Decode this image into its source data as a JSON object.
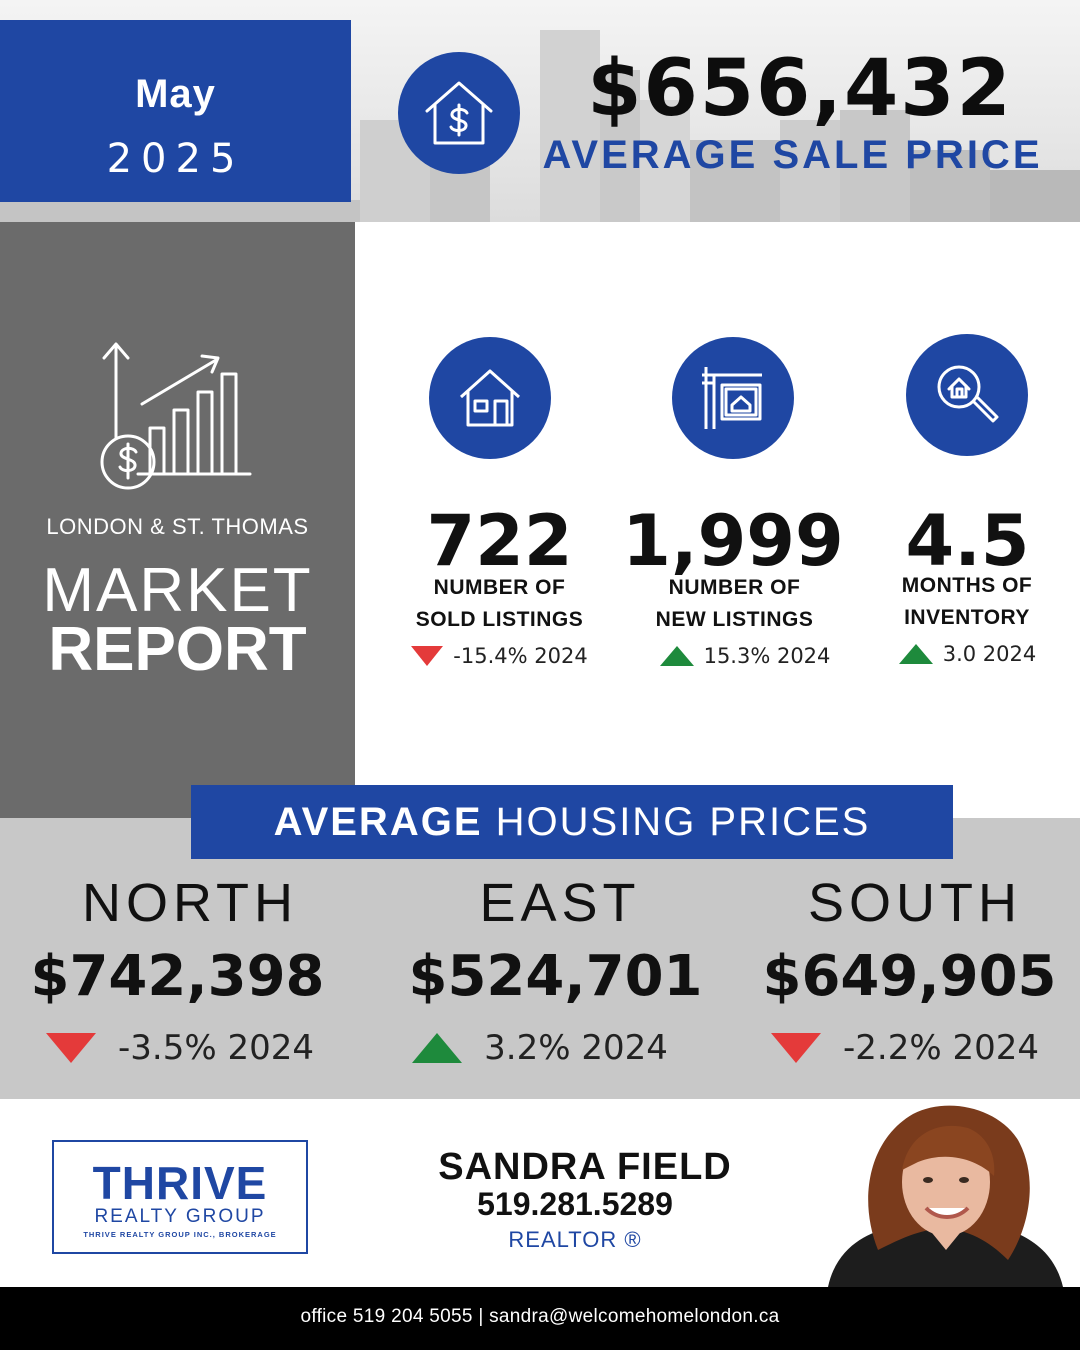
{
  "header": {
    "month": "May",
    "year": "2025",
    "average_sale_price": "$656,432",
    "average_sale_price_label": "AVERAGE SALE PRICE",
    "price_icon": "house-dollar-icon"
  },
  "report": {
    "region": "LONDON & ST. THOMAS",
    "title_line1": "MARKET",
    "title_line2": "REPORT",
    "icon": "growth-chart-dollar-icon"
  },
  "stats": [
    {
      "icon": "house-icon",
      "value": "722",
      "label_line1": "NUMBER OF",
      "label_line2": "SOLD LISTINGS",
      "direction": "down",
      "change": "-15.4% 2024"
    },
    {
      "icon": "for-sale-sign-icon",
      "value": "1,999",
      "label_line1": "NUMBER OF",
      "label_line2": "NEW LISTINGS",
      "direction": "up",
      "change": "15.3% 2024"
    },
    {
      "icon": "house-search-icon",
      "value": "4.5",
      "label_line1": "MONTHS OF",
      "label_line2": "INVENTORY",
      "direction": "up",
      "change": "3.0 2024"
    }
  ],
  "housing": {
    "title_bold": "AVERAGE",
    "title_rest": "HOUSING PRICES",
    "regions": [
      {
        "name": "NORTH",
        "price": "$742,398",
        "direction": "down",
        "change": "-3.5% 2024"
      },
      {
        "name": "EAST",
        "price": "$524,701",
        "direction": "up",
        "change": "3.2% 2024"
      },
      {
        "name": "SOUTH",
        "price": "$649,905",
        "direction": "down",
        "change": "-2.2% 2024"
      }
    ]
  },
  "agent": {
    "logo_brand": "THRIVE",
    "logo_sub": "REALTY GROUP",
    "logo_legal": "THRIVE REALTY GROUP INC., BROKERAGE",
    "name": "SANDRA FIELD",
    "phone": "519.281.5289",
    "title": "REALTOR ®"
  },
  "footer": {
    "contact": "office 519 204 5055 | sandra@welcomehomelondon.ca"
  },
  "colors": {
    "brand_blue": "#1f47a3",
    "panel_grey": "#6b6b6b",
    "band_grey": "#c8c8c8",
    "down_red": "#e43a3a",
    "up_green": "#1e8a3c"
  }
}
